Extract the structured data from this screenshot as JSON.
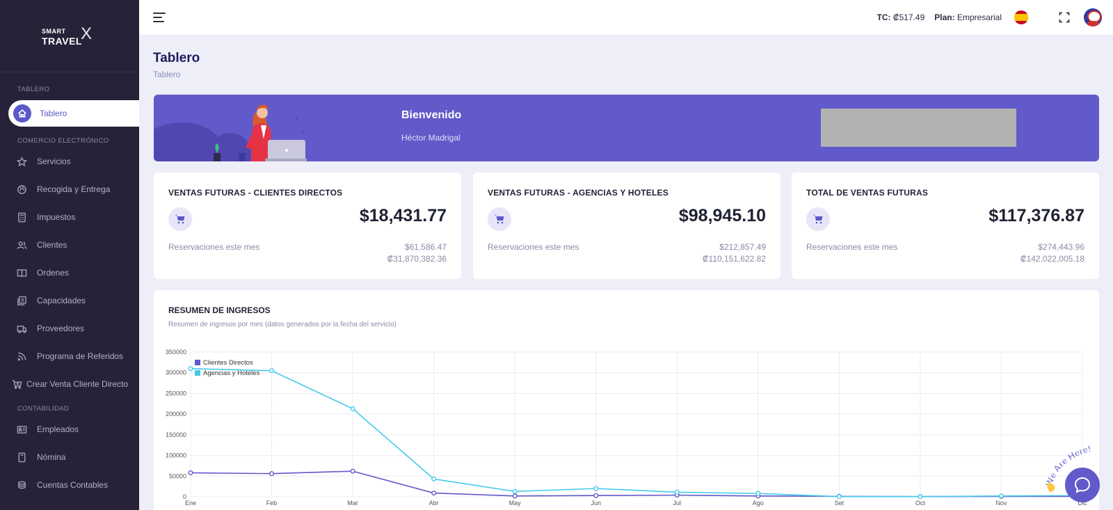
{
  "brand": {
    "line1": "SMART",
    "line2": "TRAVEL",
    "mark": "X"
  },
  "sidebar": {
    "sections": [
      {
        "label": "TABLERO"
      },
      {
        "label": "COMERCIO ELECTRÓNICO"
      },
      {
        "label": "CONTABILIDAD"
      }
    ],
    "active_item": {
      "label": "Tablero",
      "icon": "home-icon"
    },
    "commerce_items": [
      {
        "label": "Servicios",
        "icon": "star-icon"
      },
      {
        "label": "Recogida y Entrega",
        "icon": "globe-icon"
      },
      {
        "label": "Impuestos",
        "icon": "calculator-icon"
      },
      {
        "label": "Clientes",
        "icon": "users-icon"
      },
      {
        "label": "Ordenes",
        "icon": "book-icon"
      },
      {
        "label": "Capacidades",
        "icon": "layers-icon"
      },
      {
        "label": "Proveedores",
        "icon": "truck-icon"
      },
      {
        "label": "Programa de Referidos",
        "icon": "rss-icon"
      },
      {
        "label": "Crear Venta Cliente Directo",
        "icon": "cart-plus-icon"
      }
    ],
    "accounting_items": [
      {
        "label": "Empleados",
        "icon": "id-card-icon"
      },
      {
        "label": "Nómina",
        "icon": "file-icon"
      },
      {
        "label": "Cuentas Contables",
        "icon": "coins-icon"
      }
    ]
  },
  "topbar": {
    "tc_label": "TC:",
    "tc_value": "₡517.49",
    "plan_label": "Plan:",
    "plan_value": "Empresarial"
  },
  "page": {
    "title": "Tablero",
    "breadcrumb": "Tablero"
  },
  "welcome": {
    "title": "Bienvenido",
    "name": "Héctor Madrigal"
  },
  "cards": [
    {
      "title": "VENTAS FUTURAS - CLIENTES DIRECTOS",
      "amount": "$18,431.77",
      "sub_label": "Reservaciones este mes",
      "usd": "$61,586.47",
      "crc": "₡31,870,382.36"
    },
    {
      "title": "VENTAS FUTURAS - AGENCIAS Y HOTELES",
      "amount": "$98,945.10",
      "sub_label": "Reservaciones este mes",
      "usd": "$212,857.49",
      "crc": "₡110,151,622.82"
    },
    {
      "title": "TOTAL DE VENTAS FUTURAS",
      "amount": "$117,376.87",
      "sub_label": "Reservaciones este mes",
      "usd": "$274,443.96",
      "crc": "₡142,022,005.18"
    }
  ],
  "chart": {
    "title": "RESUMEN DE INGRESOS",
    "subtitle": "Resumen de ingresos por mes (datos generados por la fecha del servicio)"
  },
  "chart_data": {
    "type": "line",
    "categories": [
      "Ene",
      "Feb",
      "Mar",
      "Abr",
      "May",
      "Jun",
      "Jul",
      "Ago",
      "Set",
      "Oct",
      "Nov",
      "Dic"
    ],
    "series": [
      {
        "name": "Clientes Directos",
        "color": "#6259ca",
        "values": [
          58000,
          56000,
          62000,
          9000,
          2000,
          3000,
          4000,
          2000,
          1000,
          500,
          1000,
          1000
        ]
      },
      {
        "name": "Agencias y Hoteles",
        "color": "#45c9eb",
        "values": [
          310000,
          305000,
          213000,
          43000,
          13000,
          20000,
          11000,
          8000,
          500,
          500,
          2000,
          3000
        ]
      }
    ],
    "ylim": [
      0,
      350000
    ],
    "yticks": [
      "350000",
      "300000",
      "250000",
      "200000",
      "150000",
      "100000",
      "50000",
      "0"
    ],
    "legend": "top-left",
    "grid": true
  },
  "chat": {
    "badge_text": "We Are Here!"
  }
}
